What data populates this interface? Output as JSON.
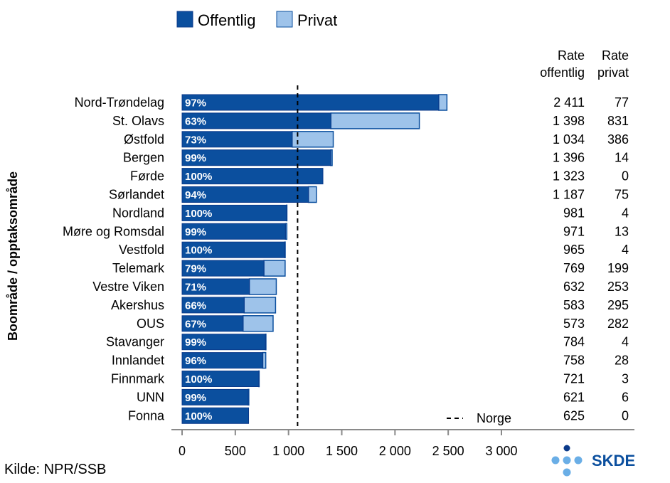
{
  "chart_data": {
    "type": "bar",
    "orientation": "horizontal",
    "stacked": true,
    "ylabel": "Boområde / opptaksområde",
    "categories": [
      "Nord-Trøndelag",
      "St. Olavs",
      "Østfold",
      "Bergen",
      "Førde",
      "Sørlandet",
      "Nordland",
      "Møre og Romsdal",
      "Vestfold",
      "Telemark",
      "Vestre Viken",
      "Akershus",
      "OUS",
      "Stavanger",
      "Innlandet",
      "Finnmark",
      "UNN",
      "Fonna"
    ],
    "series": [
      {
        "name": "Offentlig",
        "color": "#0b4f9e",
        "values": [
          2411,
          1398,
          1034,
          1396,
          1323,
          1187,
          981,
          971,
          965,
          769,
          632,
          583,
          573,
          784,
          758,
          721,
          621,
          625
        ]
      },
      {
        "name": "Privat",
        "color": "#9ec3ea",
        "values": [
          77,
          831,
          386,
          14,
          0,
          75,
          4,
          13,
          4,
          199,
          253,
          295,
          282,
          4,
          28,
          3,
          6,
          0
        ]
      }
    ],
    "percent_labels": [
      "97%",
      "63%",
      "73%",
      "99%",
      "100%",
      "94%",
      "100%",
      "99%",
      "100%",
      "79%",
      "71%",
      "66%",
      "67%",
      "99%",
      "96%",
      "100%",
      "99%",
      "100%"
    ],
    "table_columns": [
      {
        "header_line1": "Rate",
        "header_line2": "offentlig",
        "values": [
          "2 411",
          "1 398",
          "1 034",
          "1 396",
          "1 323",
          "1 187",
          "981",
          "971",
          "965",
          "769",
          "632",
          "583",
          "573",
          "784",
          "758",
          "721",
          "621",
          "625"
        ]
      },
      {
        "header_line1": "Rate",
        "header_line2": "privat",
        "values": [
          "77",
          "831",
          "386",
          "14",
          "0",
          "75",
          "4",
          "13",
          "4",
          "199",
          "253",
          "295",
          "282",
          "4",
          "28",
          "3",
          "6",
          "0"
        ]
      }
    ],
    "xlim": [
      0,
      3000
    ],
    "xticks": [
      0,
      500,
      1000,
      1500,
      2000,
      2500,
      3000
    ],
    "xtick_labels": [
      "0",
      "500",
      "1 000",
      "1 500",
      "2 000",
      "2 500",
      "3 000"
    ],
    "reference_line": {
      "label": "Norge",
      "value": 1085,
      "legend_marker": "--"
    },
    "legend": {
      "placement": "top-center",
      "entries": [
        "Offentlig",
        "Privat"
      ]
    },
    "grid": false
  },
  "source": "Kilde: NPR/SSB",
  "logo": {
    "text": "SKDE",
    "colors": {
      "dark": "#0b3a8a",
      "light": "#6aaee6"
    }
  }
}
